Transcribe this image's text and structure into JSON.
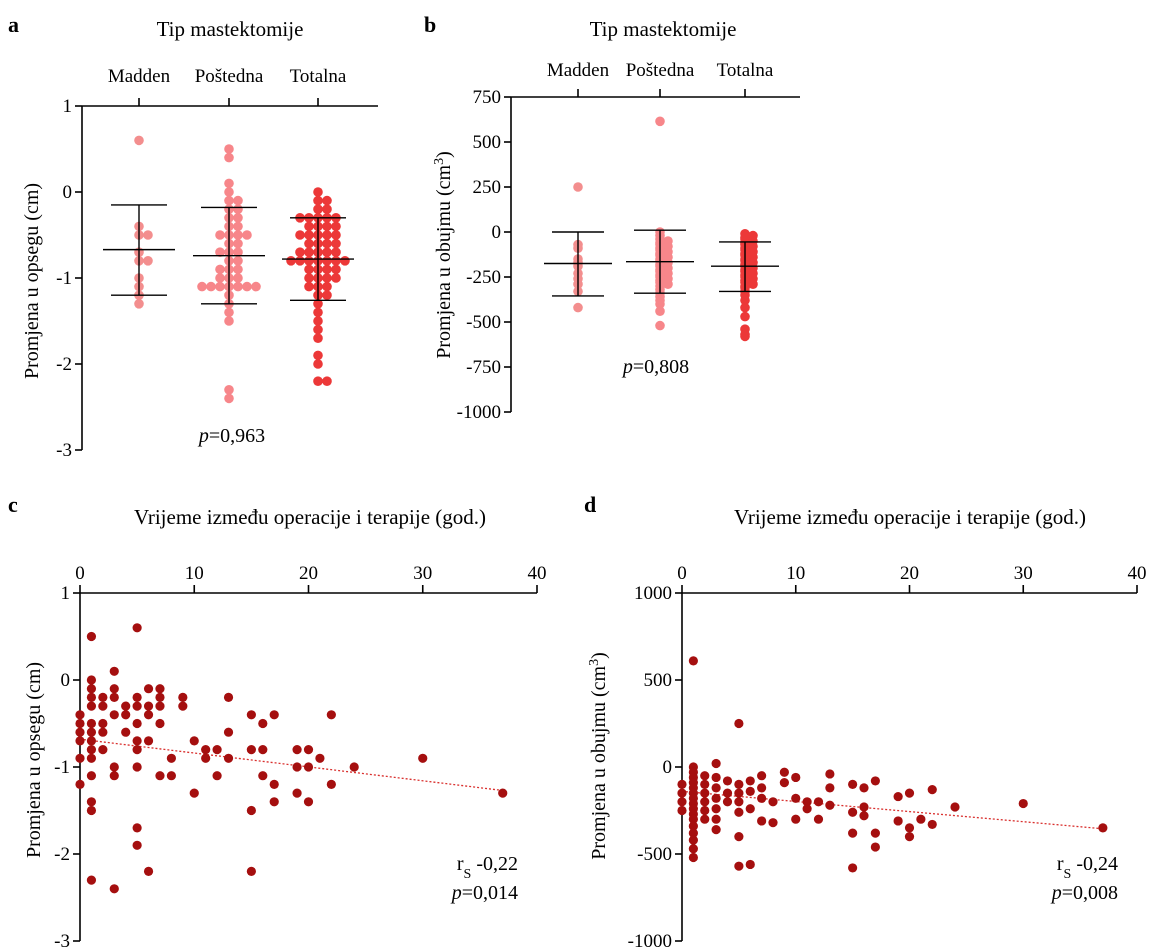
{
  "colors": {
    "madden": "#f38e8e",
    "postedna": "#f7868a",
    "totalna": "#ec3838",
    "scatter": "#a50f0f",
    "trend": "#d9302e"
  },
  "chart_data": [
    {
      "panel": "a",
      "type": "scatter",
      "title": "Tip mastektomije",
      "ylabel": "Promjena u opsegu (cm)",
      "categories": [
        "Madden",
        "Poštedna",
        "Totalna"
      ],
      "ylim": [
        -3,
        1
      ],
      "yticks": [
        {
          "v": 1,
          "label": "1"
        },
        {
          "v": 0,
          "label": "0"
        },
        {
          "v": -1,
          "label": "-1"
        },
        {
          "v": -2,
          "label": "-2"
        },
        {
          "v": -3,
          "label": "-3"
        }
      ],
      "p_prefix": "p",
      "p_value": "=0,963",
      "series": [
        {
          "category": "Madden",
          "mean": -0.67,
          "sd_low": -1.2,
          "sd_high": -0.15,
          "values": [
            0.6,
            -0.4,
            -0.5,
            -0.5,
            -0.7,
            -0.8,
            -0.8,
            -1.0,
            -1.1,
            -1.2,
            -1.3
          ]
        },
        {
          "category": "Poštedna",
          "mean": -0.74,
          "sd_low": -1.3,
          "sd_high": -0.18,
          "values": [
            0.5,
            0.4,
            0.1,
            0.0,
            -0.1,
            -0.1,
            -0.2,
            -0.2,
            -0.3,
            -0.3,
            -0.4,
            -0.4,
            -0.5,
            -0.5,
            -0.5,
            -0.5,
            -0.6,
            -0.6,
            -0.7,
            -0.7,
            -0.7,
            -0.8,
            -0.8,
            -0.9,
            -0.9,
            -0.9,
            -1.0,
            -1.0,
            -1.0,
            -1.1,
            -1.1,
            -1.1,
            -1.1,
            -1.1,
            -1.1,
            -1.1,
            -1.2,
            -1.3,
            -1.4,
            -1.5,
            -2.3,
            -2.4
          ]
        },
        {
          "category": "Totalna",
          "mean": -0.78,
          "sd_low": -1.26,
          "sd_high": -0.3,
          "values": [
            0.0,
            -0.1,
            -0.1,
            -0.2,
            -0.2,
            -0.3,
            -0.3,
            -0.3,
            -0.3,
            -0.3,
            -0.4,
            -0.4,
            -0.4,
            -0.4,
            -0.5,
            -0.5,
            -0.5,
            -0.5,
            -0.5,
            -0.6,
            -0.6,
            -0.6,
            -0.6,
            -0.7,
            -0.7,
            -0.7,
            -0.7,
            -0.7,
            -0.8,
            -0.8,
            -0.8,
            -0.8,
            -0.8,
            -0.8,
            -0.8,
            -0.9,
            -0.9,
            -0.9,
            -0.9,
            -1.0,
            -1.0,
            -1.0,
            -1.0,
            -1.1,
            -1.1,
            -1.1,
            -1.2,
            -1.2,
            -1.3,
            -1.4,
            -1.5,
            -1.6,
            -1.7,
            -1.9,
            -2.0,
            -2.2,
            -2.2
          ]
        }
      ]
    },
    {
      "panel": "b",
      "type": "scatter",
      "title": "Tip mastektomije",
      "ylabel": "Promjena u obujmu (cm",
      "ylabel_sup": "3",
      "ylabel_end": ")",
      "categories": [
        "Madden",
        "Poštedna",
        "Totalna"
      ],
      "ylim": [
        -1000,
        750
      ],
      "yticks": [
        {
          "v": 750,
          "label": "750"
        },
        {
          "v": 500,
          "label": "500"
        },
        {
          "v": 250,
          "label": "250"
        },
        {
          "v": 0,
          "label": "0"
        },
        {
          "v": -250,
          "label": "-250"
        },
        {
          "v": -500,
          "label": "-500"
        },
        {
          "v": -750,
          "label": "-750"
        },
        {
          "v": -1000,
          "label": "-1000"
        }
      ],
      "p_prefix": "p",
      "p_value": "=0,808",
      "series": [
        {
          "category": "Madden",
          "mean": -175,
          "sd_low": -355,
          "sd_high": 0,
          "values": [
            250,
            -70,
            -90,
            -150,
            -170,
            -190,
            -230,
            -260,
            -290,
            -330,
            -420
          ]
        },
        {
          "category": "Poštedna",
          "mean": -165,
          "sd_low": -340,
          "sd_high": 10,
          "values": [
            615,
            0,
            -20,
            -40,
            -50,
            -60,
            -70,
            -80,
            -90,
            -100,
            -110,
            -120,
            -130,
            -140,
            -150,
            -160,
            -170,
            -180,
            -190,
            -200,
            -210,
            -220,
            -230,
            -240,
            -250,
            -260,
            -270,
            -280,
            -290,
            -300,
            -320,
            -340,
            -360,
            -380,
            -400,
            -440,
            -520
          ]
        },
        {
          "category": "Totalna",
          "mean": -190,
          "sd_low": -330,
          "sd_high": -55,
          "values": [
            -10,
            -20,
            -30,
            -40,
            -50,
            -60,
            -70,
            -80,
            -90,
            -100,
            -110,
            -120,
            -130,
            -140,
            -150,
            -160,
            -170,
            -180,
            -190,
            -200,
            -210,
            -220,
            -230,
            -240,
            -250,
            -260,
            -270,
            -280,
            -290,
            -300,
            -310,
            -330,
            -350,
            -380,
            -420,
            -470,
            -540,
            -570,
            -580
          ]
        }
      ]
    },
    {
      "panel": "c",
      "type": "scatter",
      "title": "Vrijeme između operacije i terapije (god.)",
      "ylabel": "Promjena u opsegu (cm)",
      "xlim": [
        0,
        40
      ],
      "ylim": [
        -3,
        1
      ],
      "xticks": [
        {
          "v": 0,
          "label": "0"
        },
        {
          "v": 10,
          "label": "10"
        },
        {
          "v": 20,
          "label": "20"
        },
        {
          "v": 30,
          "label": "30"
        },
        {
          "v": 40,
          "label": "40"
        }
      ],
      "yticks": [
        {
          "v": 1,
          "label": "1"
        },
        {
          "v": 0,
          "label": "0"
        },
        {
          "v": -1,
          "label": "-1"
        },
        {
          "v": -2,
          "label": "-2"
        },
        {
          "v": -3,
          "label": "-3"
        }
      ],
      "trend": [
        [
          0,
          -0.68
        ],
        [
          37,
          -1.27
        ]
      ],
      "rs_prefix": "r",
      "rs_sub": "S",
      "rs_value": " -0,22",
      "p_prefix": "p",
      "p_value": "=0,014",
      "points": [
        [
          0,
          -0.4
        ],
        [
          0,
          -0.5
        ],
        [
          0,
          -0.6
        ],
        [
          0,
          -0.7
        ],
        [
          0,
          -0.9
        ],
        [
          0,
          -1.2
        ],
        [
          1,
          0.5
        ],
        [
          1,
          0.0
        ],
        [
          1,
          -0.1
        ],
        [
          1,
          -0.2
        ],
        [
          1,
          -0.3
        ],
        [
          1,
          -0.5
        ],
        [
          1,
          -0.6
        ],
        [
          1,
          -0.7
        ],
        [
          1,
          -0.8
        ],
        [
          1,
          -0.9
        ],
        [
          1,
          -1.1
        ],
        [
          1,
          -1.4
        ],
        [
          1,
          -1.5
        ],
        [
          1,
          -2.3
        ],
        [
          2,
          -0.2
        ],
        [
          2,
          -0.3
        ],
        [
          2,
          -0.5
        ],
        [
          2,
          -0.6
        ],
        [
          2,
          -0.8
        ],
        [
          3,
          0.1
        ],
        [
          3,
          -0.1
        ],
        [
          3,
          -0.2
        ],
        [
          3,
          -0.4
        ],
        [
          3,
          -1.0
        ],
        [
          3,
          -1.1
        ],
        [
          3,
          -2.4
        ],
        [
          4,
          -0.3
        ],
        [
          4,
          -0.4
        ],
        [
          4,
          -0.6
        ],
        [
          5,
          0.6
        ],
        [
          5,
          -0.2
        ],
        [
          5,
          -0.3
        ],
        [
          5,
          -0.5
        ],
        [
          5,
          -0.7
        ],
        [
          5,
          -0.8
        ],
        [
          5,
          -1.0
        ],
        [
          5,
          -1.7
        ],
        [
          5,
          -1.9
        ],
        [
          6,
          -0.1
        ],
        [
          6,
          -0.3
        ],
        [
          6,
          -0.4
        ],
        [
          6,
          -0.7
        ],
        [
          6,
          -2.2
        ],
        [
          7,
          -0.1
        ],
        [
          7,
          -0.2
        ],
        [
          7,
          -0.3
        ],
        [
          7,
          -0.5
        ],
        [
          7,
          -1.1
        ],
        [
          8,
          -0.9
        ],
        [
          8,
          -1.1
        ],
        [
          9,
          -0.2
        ],
        [
          9,
          -0.3
        ],
        [
          10,
          -0.7
        ],
        [
          10,
          -1.3
        ],
        [
          11,
          -0.8
        ],
        [
          11,
          -0.9
        ],
        [
          12,
          -0.8
        ],
        [
          12,
          -1.1
        ],
        [
          13,
          -0.2
        ],
        [
          13,
          -0.6
        ],
        [
          13,
          -0.9
        ],
        [
          15,
          -0.4
        ],
        [
          15,
          -0.8
        ],
        [
          15,
          -1.5
        ],
        [
          15,
          -2.2
        ],
        [
          16,
          -0.5
        ],
        [
          16,
          -0.8
        ],
        [
          16,
          -1.1
        ],
        [
          17,
          -0.4
        ],
        [
          17,
          -1.2
        ],
        [
          17,
          -1.4
        ],
        [
          19,
          -0.8
        ],
        [
          19,
          -1.0
        ],
        [
          19,
          -1.3
        ],
        [
          20,
          -0.8
        ],
        [
          20,
          -1.0
        ],
        [
          20,
          -1.4
        ],
        [
          21,
          -0.9
        ],
        [
          22,
          -0.4
        ],
        [
          22,
          -1.2
        ],
        [
          24,
          -1.0
        ],
        [
          30,
          -0.9
        ],
        [
          37,
          -1.3
        ]
      ]
    },
    {
      "panel": "d",
      "type": "scatter",
      "title": "Vrijeme između operacije i terapije (god.)",
      "ylabel": "Promjena u obujmu (cm",
      "ylabel_sup": "3",
      "ylabel_end": ")",
      "xlim": [
        0,
        40
      ],
      "ylim": [
        -1000,
        1000
      ],
      "xticks": [
        {
          "v": 0,
          "label": "0"
        },
        {
          "v": 10,
          "label": "10"
        },
        {
          "v": 20,
          "label": "20"
        },
        {
          "v": 30,
          "label": "30"
        },
        {
          "v": 40,
          "label": "40"
        }
      ],
      "yticks": [
        {
          "v": 1000,
          "label": "1000"
        },
        {
          "v": 500,
          "label": "500"
        },
        {
          "v": 0,
          "label": "0"
        },
        {
          "v": -500,
          "label": "-500"
        },
        {
          "v": -1000,
          "label": "-1000"
        }
      ],
      "trend": [
        [
          0,
          -140
        ],
        [
          37,
          -355
        ]
      ],
      "rs_prefix": "r",
      "rs_sub": "S",
      "rs_value": " -0,24",
      "p_prefix": "p",
      "p_value": "=0,008",
      "points": [
        [
          0,
          -100
        ],
        [
          0,
          -150
        ],
        [
          0,
          -200
        ],
        [
          0,
          -250
        ],
        [
          1,
          610
        ],
        [
          1,
          0
        ],
        [
          1,
          -30
        ],
        [
          1,
          -60
        ],
        [
          1,
          -90
        ],
        [
          1,
          -120
        ],
        [
          1,
          -150
        ],
        [
          1,
          -180
        ],
        [
          1,
          -210
        ],
        [
          1,
          -240
        ],
        [
          1,
          -270
        ],
        [
          1,
          -300
        ],
        [
          1,
          -340
        ],
        [
          1,
          -380
        ],
        [
          1,
          -420
        ],
        [
          1,
          -470
        ],
        [
          1,
          -520
        ],
        [
          2,
          -50
        ],
        [
          2,
          -100
        ],
        [
          2,
          -150
        ],
        [
          2,
          -200
        ],
        [
          2,
          -250
        ],
        [
          2,
          -300
        ],
        [
          3,
          20
        ],
        [
          3,
          -60
        ],
        [
          3,
          -120
        ],
        [
          3,
          -180
        ],
        [
          3,
          -240
        ],
        [
          3,
          -300
        ],
        [
          3,
          -360
        ],
        [
          4,
          -80
        ],
        [
          4,
          -150
        ],
        [
          4,
          -200
        ],
        [
          5,
          250
        ],
        [
          5,
          -100
        ],
        [
          5,
          -150
        ],
        [
          5,
          -200
        ],
        [
          5,
          -260
        ],
        [
          5,
          -400
        ],
        [
          5,
          -570
        ],
        [
          6,
          -80
        ],
        [
          6,
          -140
        ],
        [
          6,
          -240
        ],
        [
          6,
          -560
        ],
        [
          7,
          -50
        ],
        [
          7,
          -120
        ],
        [
          7,
          -180
        ],
        [
          7,
          -310
        ],
        [
          8,
          -200
        ],
        [
          8,
          -320
        ],
        [
          9,
          -30
        ],
        [
          9,
          -90
        ],
        [
          10,
          -60
        ],
        [
          10,
          -180
        ],
        [
          10,
          -300
        ],
        [
          11,
          -200
        ],
        [
          11,
          -240
        ],
        [
          12,
          -200
        ],
        [
          12,
          -300
        ],
        [
          13,
          -40
        ],
        [
          13,
          -120
        ],
        [
          13,
          -220
        ],
        [
          15,
          -100
        ],
        [
          15,
          -260
        ],
        [
          15,
          -380
        ],
        [
          15,
          -580
        ],
        [
          16,
          -120
        ],
        [
          16,
          -230
        ],
        [
          16,
          -280
        ],
        [
          17,
          -80
        ],
        [
          17,
          -380
        ],
        [
          17,
          -460
        ],
        [
          19,
          -170
        ],
        [
          19,
          -310
        ],
        [
          20,
          -150
        ],
        [
          20,
          -350
        ],
        [
          20,
          -400
        ],
        [
          21,
          -300
        ],
        [
          22,
          -130
        ],
        [
          22,
          -330
        ],
        [
          24,
          -230
        ],
        [
          30,
          -210
        ],
        [
          37,
          -350
        ]
      ]
    }
  ]
}
